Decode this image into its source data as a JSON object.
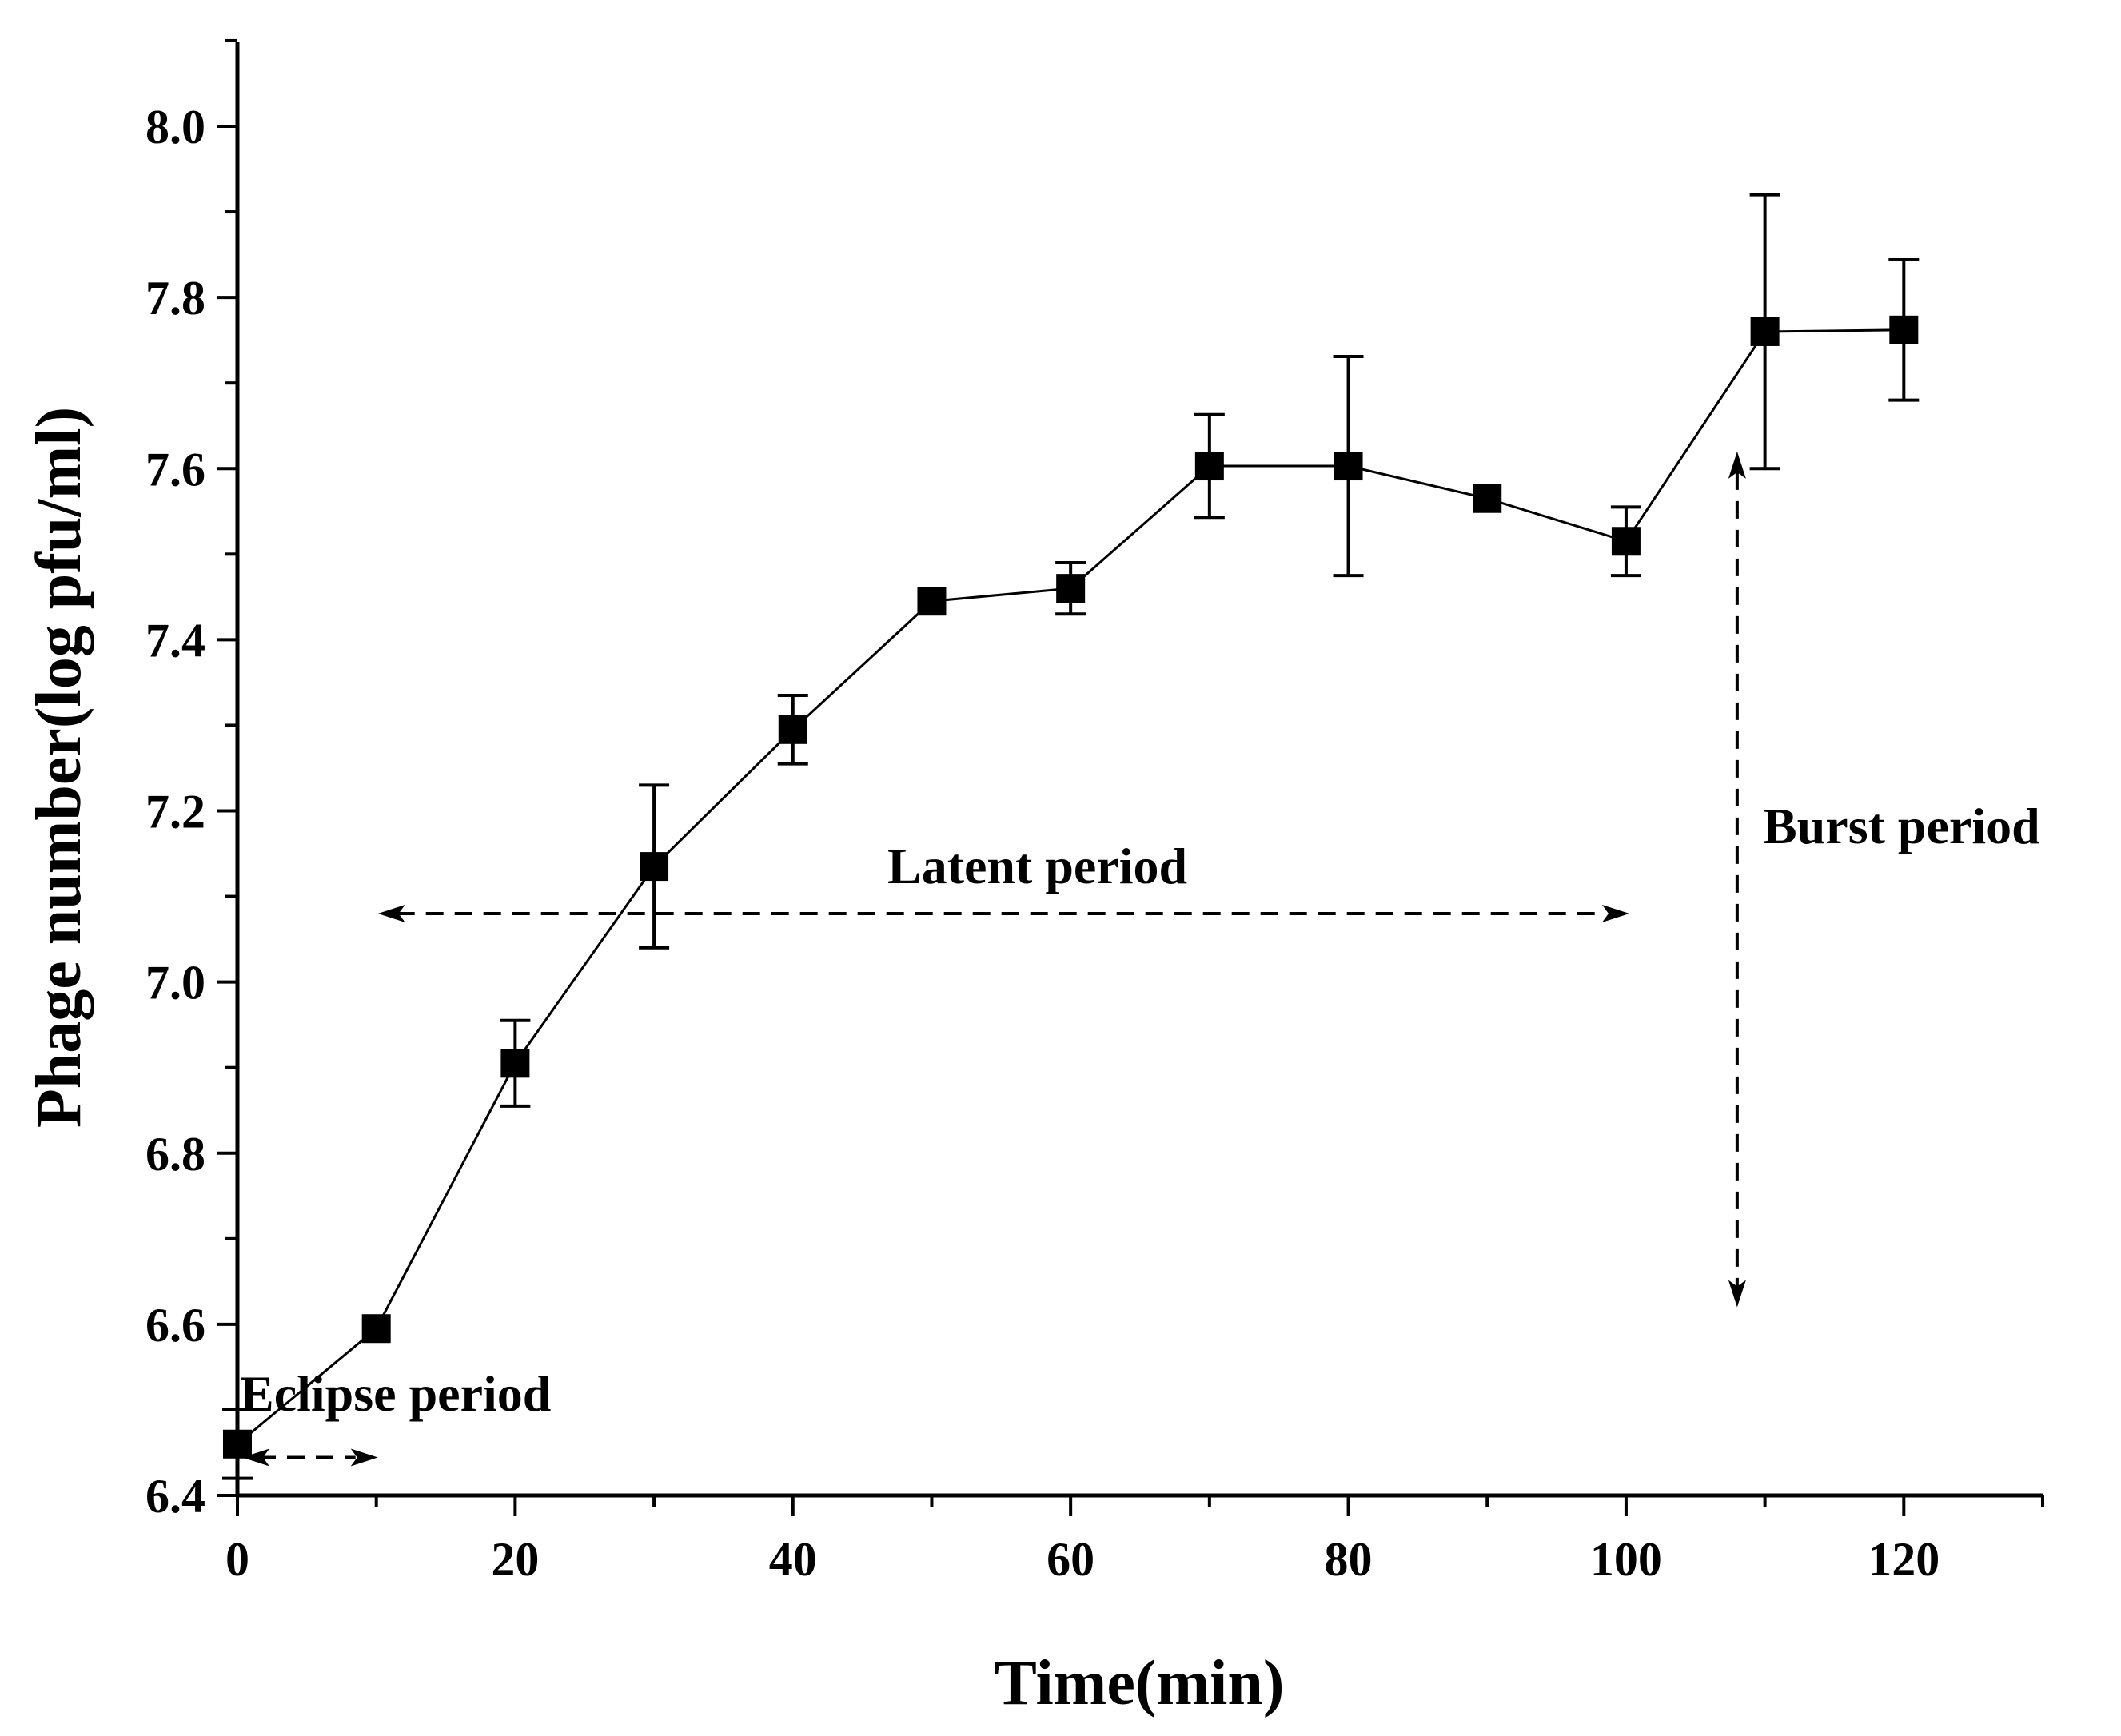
{
  "chart_data": {
    "type": "line",
    "title": "",
    "xlabel": "Time(min)",
    "ylabel": "Phage number(log pfu/ml)",
    "xlim": [
      0,
      130
    ],
    "ylim": [
      6.4,
      8.1
    ],
    "xticks": [
      0,
      20,
      40,
      60,
      80,
      100,
      120
    ],
    "yticks": [
      6.4,
      6.6,
      6.8,
      7.0,
      7.2,
      7.4,
      7.6,
      7.8,
      8.0
    ],
    "xtick_labels": [
      "0",
      "20",
      "40",
      "60",
      "80",
      "100",
      "120"
    ],
    "ytick_labels": [
      "6.4",
      "6.6",
      "6.8",
      "7.0",
      "7.2",
      "7.4",
      "7.6",
      "7.8",
      "8.0"
    ],
    "grid": false,
    "series": [
      {
        "name": "Phage number",
        "marker": "square",
        "color": "#000000",
        "x": [
          0,
          10,
          20,
          30,
          40,
          50,
          60,
          70,
          80,
          90,
          100,
          110,
          120
        ],
        "y": [
          6.46,
          6.595,
          6.905,
          7.135,
          7.295,
          7.445,
          7.46,
          7.603,
          7.603,
          7.565,
          7.515,
          7.76,
          7.762
        ],
        "error": [
          0.04,
          0.0,
          0.05,
          0.095,
          0.04,
          0.0,
          0.03,
          0.06,
          0.128,
          0.0,
          0.04,
          0.16,
          0.082
        ]
      }
    ],
    "annotations": [
      {
        "id": "eclipse",
        "text": "Eclipse period",
        "x_start": 0,
        "x_end": 10,
        "y": 6.45,
        "direction": "horizontal"
      },
      {
        "id": "latent",
        "text": "Latent period",
        "x_start": 10,
        "x_end": 100,
        "y": 7.08,
        "direction": "horizontal"
      },
      {
        "id": "burst",
        "text": "Burst period",
        "x": 108,
        "y_start": 6.62,
        "y_end": 7.62,
        "direction": "vertical"
      }
    ]
  }
}
